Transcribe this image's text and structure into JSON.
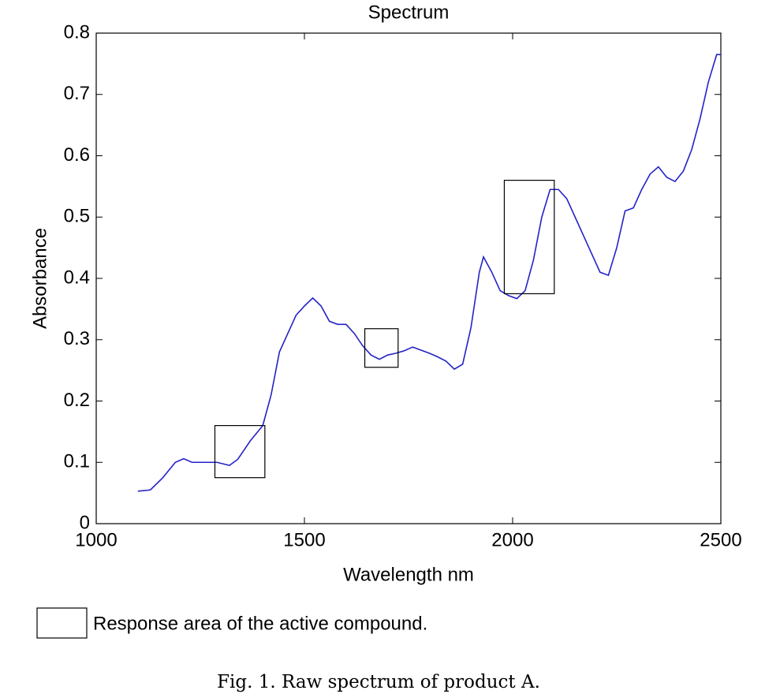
{
  "chart_data": {
    "type": "line",
    "title": "Spectrum",
    "xlabel": "Wavelength nm",
    "ylabel": "Absorbance",
    "x": [
      1100,
      1130,
      1160,
      1190,
      1210,
      1230,
      1260,
      1290,
      1320,
      1340,
      1370,
      1400,
      1420,
      1440,
      1460,
      1480,
      1500,
      1520,
      1540,
      1560,
      1580,
      1600,
      1620,
      1640,
      1660,
      1680,
      1700,
      1720,
      1740,
      1760,
      1780,
      1800,
      1820,
      1840,
      1860,
      1880,
      1900,
      1920,
      1930,
      1950,
      1970,
      1990,
      2010,
      2030,
      2050,
      2070,
      2090,
      2110,
      2130,
      2150,
      2170,
      2190,
      2210,
      2230,
      2250,
      2270,
      2290,
      2310,
      2330,
      2350,
      2370,
      2390,
      2410,
      2430,
      2450,
      2470,
      2490,
      2500
    ],
    "series": [
      {
        "color": "#2323c8",
        "values": [
          0.053,
          0.055,
          0.075,
          0.1,
          0.106,
          0.1,
          0.1,
          0.1,
          0.095,
          0.105,
          0.135,
          0.16,
          0.21,
          0.28,
          0.31,
          0.34,
          0.355,
          0.368,
          0.355,
          0.33,
          0.325,
          0.325,
          0.31,
          0.29,
          0.275,
          0.268,
          0.275,
          0.278,
          0.282,
          0.288,
          0.283,
          0.278,
          0.272,
          0.265,
          0.252,
          0.26,
          0.32,
          0.41,
          0.435,
          0.41,
          0.38,
          0.372,
          0.367,
          0.38,
          0.43,
          0.5,
          0.545,
          0.545,
          0.53,
          0.5,
          0.47,
          0.44,
          0.41,
          0.405,
          0.45,
          0.51,
          0.515,
          0.545,
          0.57,
          0.582,
          0.565,
          0.558,
          0.575,
          0.61,
          0.66,
          0.72,
          0.765,
          0.765
        ]
      }
    ],
    "regions": [
      {
        "x": [
          1285,
          1405
        ],
        "y": [
          0.075,
          0.16
        ]
      },
      {
        "x": [
          1645,
          1725
        ],
        "y": [
          0.255,
          0.318
        ]
      },
      {
        "x": [
          1980,
          2100
        ],
        "y": [
          0.375,
          0.56
        ]
      }
    ],
    "region_label": "Response area of the active compound.",
    "caption": "Fig. 1. Raw spectrum of product A.",
    "xlim": [
      1000,
      2500
    ],
    "xticks": [
      1000,
      1500,
      2000,
      2500
    ],
    "ylim": [
      0,
      0.8
    ],
    "yticks": [
      0,
      0.1,
      0.2,
      0.3,
      0.4,
      0.5,
      0.6,
      0.7,
      0.8
    ]
  }
}
